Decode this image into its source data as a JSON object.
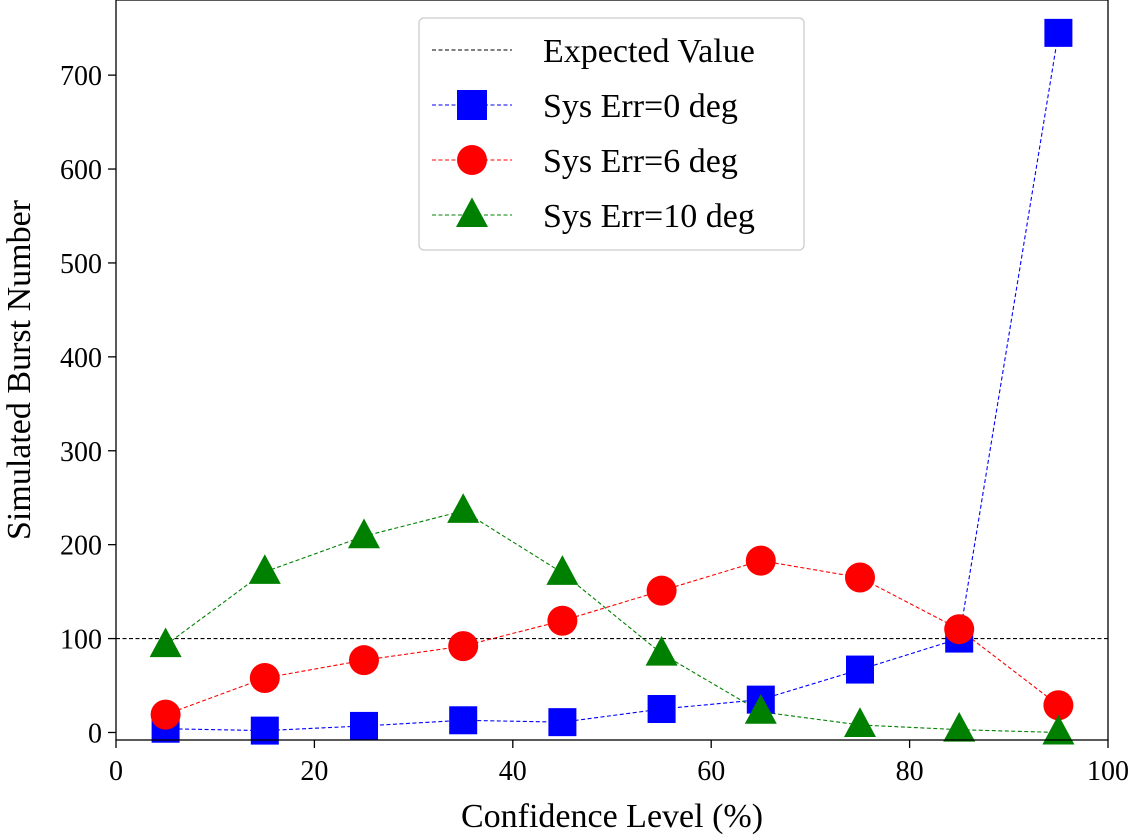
{
  "chart_data": {
    "type": "line",
    "title": "",
    "xlabel": "Confidence Level (%)",
    "ylabel": "Simulated Burst Number",
    "xlim": [
      0,
      100
    ],
    "ylim": [
      -8,
      780
    ],
    "xticks": [
      0,
      20,
      40,
      60,
      80,
      100
    ],
    "yticks": [
      0,
      100,
      200,
      300,
      400,
      500,
      600,
      700
    ],
    "grid": false,
    "legend_position": "top-center",
    "reference_line": {
      "name": "Expected Value",
      "y": 100,
      "color": "#000000"
    },
    "x": [
      5,
      15,
      25,
      35,
      45,
      55,
      65,
      75,
      85,
      95
    ],
    "series": [
      {
        "name": "Sys Err=0 deg",
        "marker": "square",
        "color": "#0000ff",
        "values": [
          4,
          2,
          7,
          13,
          11,
          25,
          35,
          67,
          100,
          745
        ]
      },
      {
        "name": "Sys Err=6 deg",
        "marker": "circle",
        "color": "#ff0000",
        "values": [
          19,
          58,
          77,
          92,
          119,
          151,
          183,
          165,
          110,
          29
        ]
      },
      {
        "name": "Sys Err=10 deg",
        "marker": "triangle",
        "color": "#008000",
        "values": [
          93,
          171,
          209,
          236,
          170,
          84,
          22,
          8,
          3,
          0
        ]
      }
    ]
  }
}
